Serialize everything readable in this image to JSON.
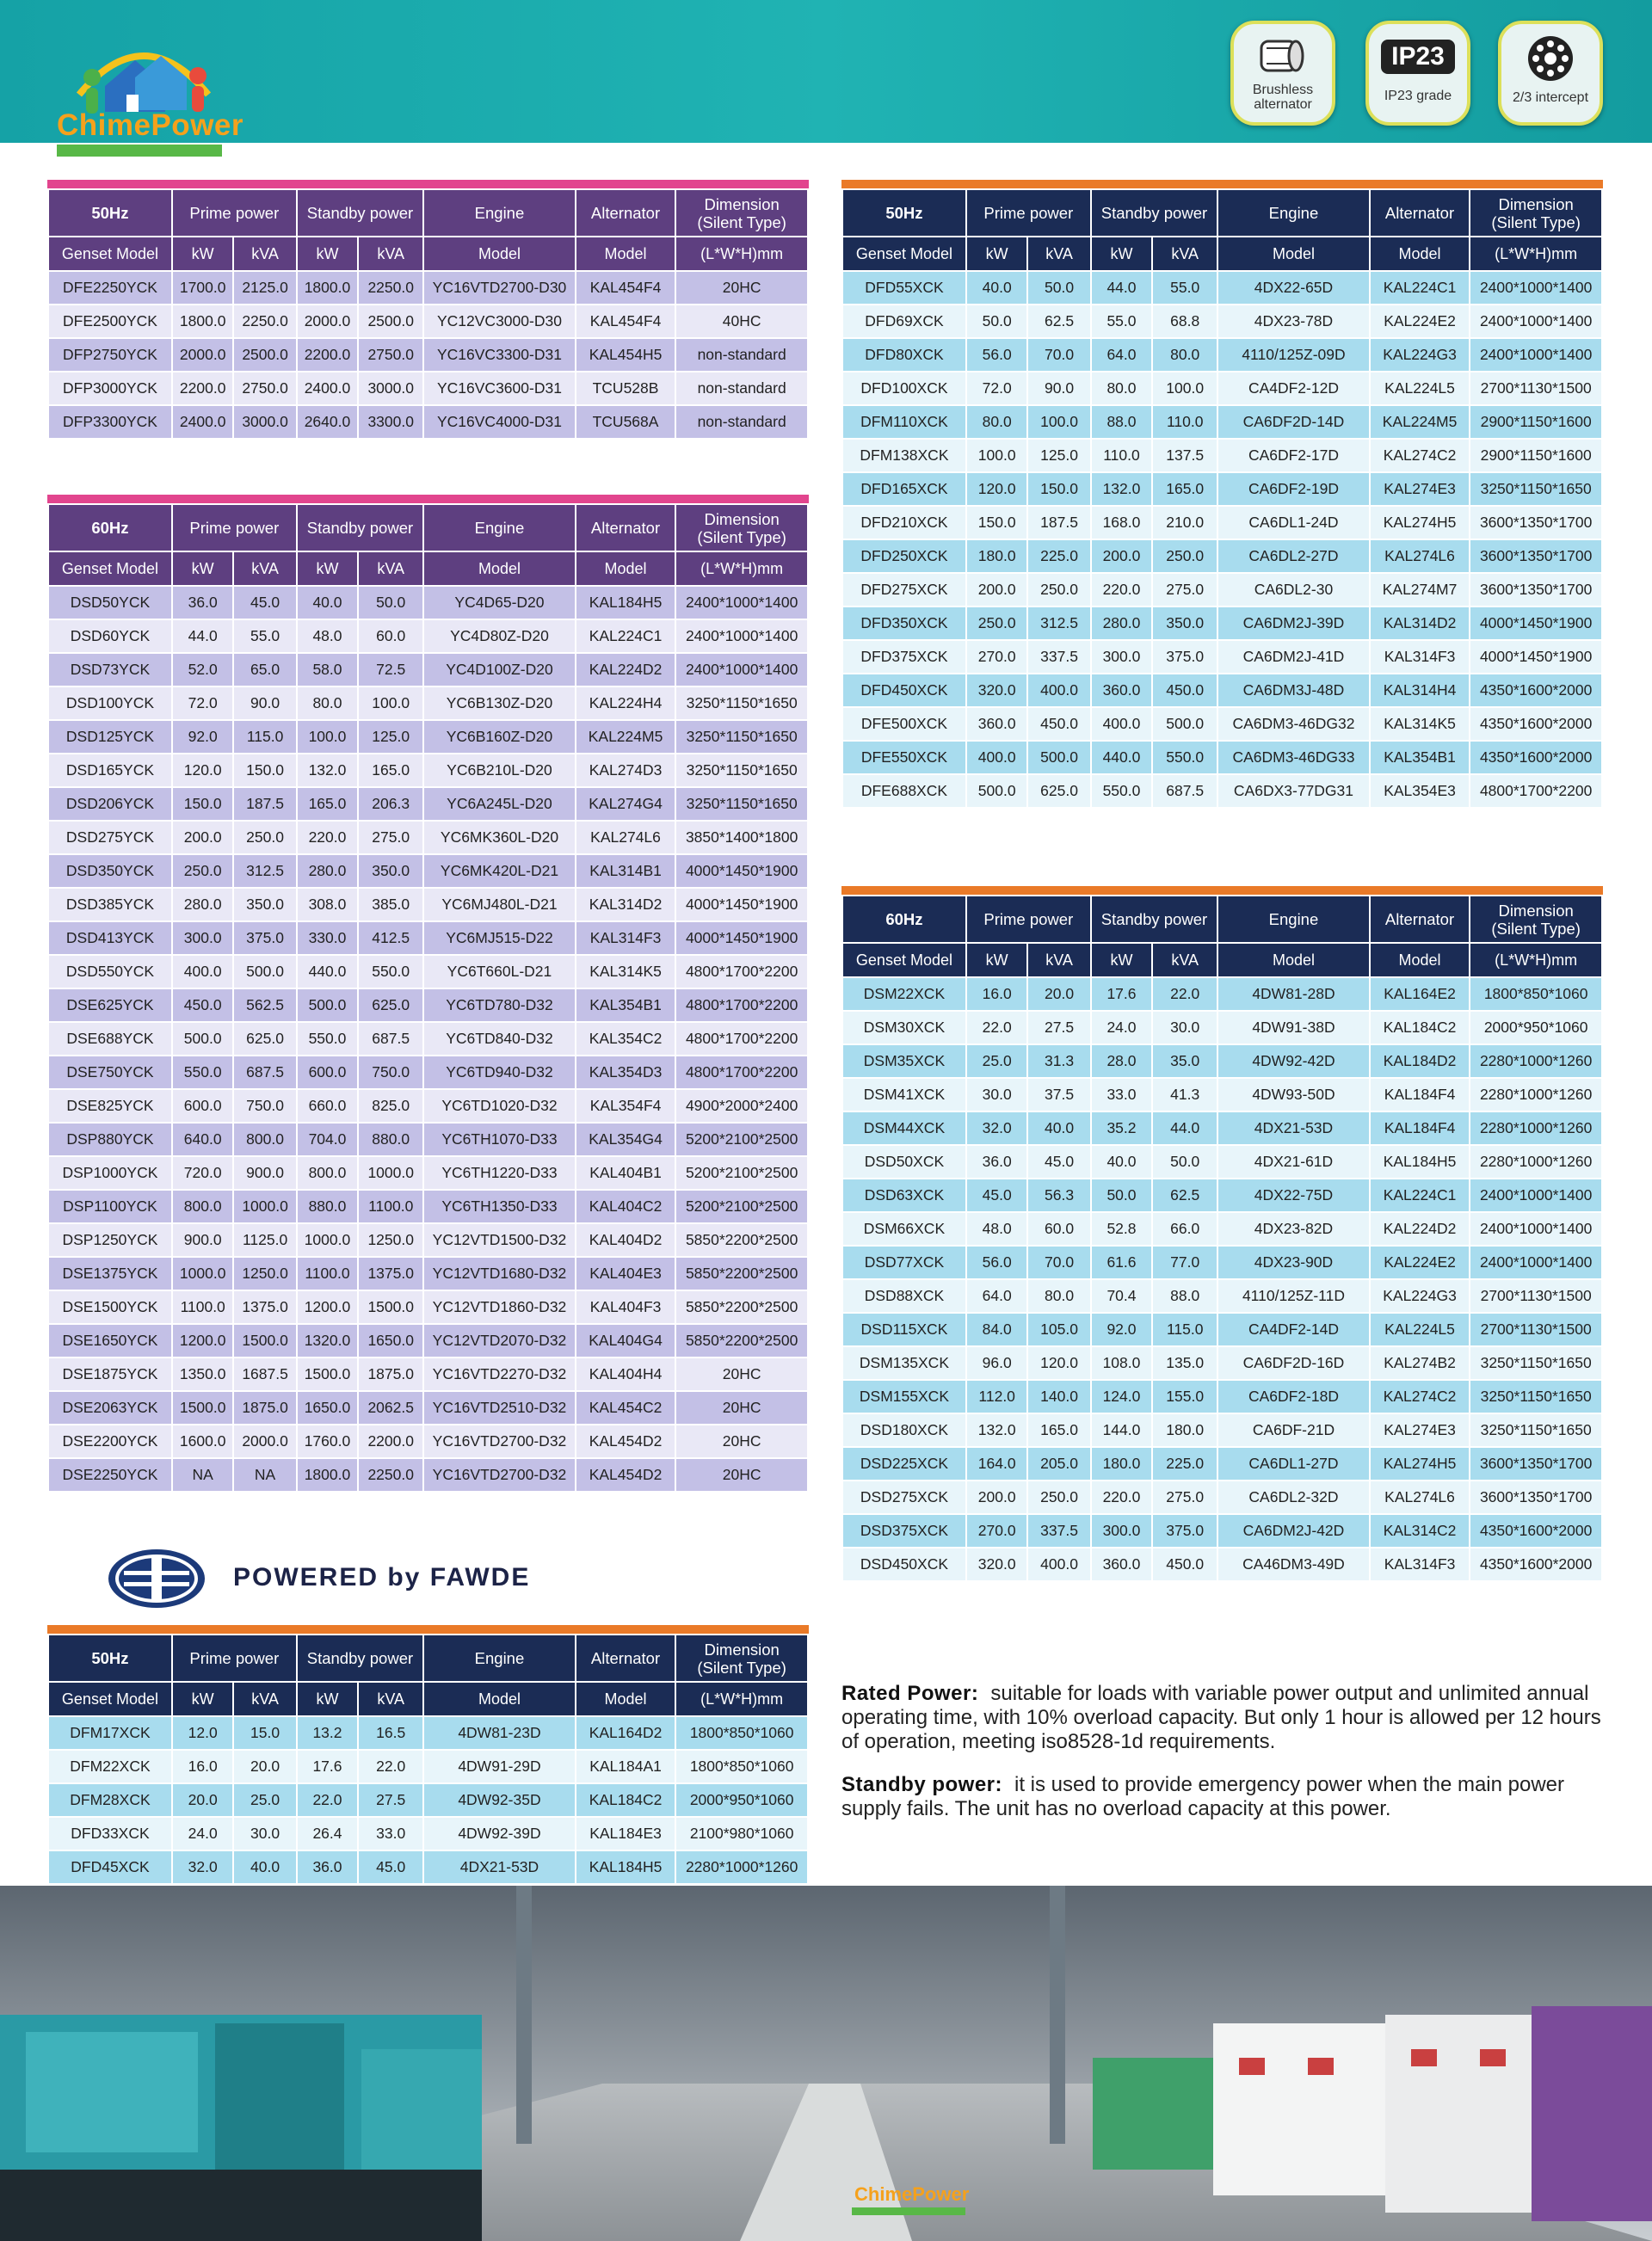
{
  "header": {
    "brand": "ChimePower",
    "ip_mark": "IP23",
    "badges": [
      "Brushless alternator",
      "IP23 grade",
      "2/3 intercept"
    ]
  },
  "table_header": {
    "groups": [
      "Prime power",
      "Standby power",
      "Engine",
      "Alternator"
    ],
    "dimension": [
      "Dimension",
      "(Silent Type)"
    ],
    "subheads": [
      "Genset Model",
      "kW",
      "kVA",
      "kW",
      "kVA",
      "Model",
      "Model",
      "(L*W*H)mm"
    ]
  },
  "tables": [
    {
      "frequency": "50Hz",
      "rows": [
        [
          "DFE2250YCK",
          "1700.0",
          "2125.0",
          "1800.0",
          "2250.0",
          "YC16VTD2700-D30",
          "KAL454F4",
          "20HC"
        ],
        [
          "DFE2500YCK",
          "1800.0",
          "2250.0",
          "2000.0",
          "2500.0",
          "YC12VC3000-D30",
          "KAL454F4",
          "40HC"
        ],
        [
          "DFP2750YCK",
          "2000.0",
          "2500.0",
          "2200.0",
          "2750.0",
          "YC16VC3300-D31",
          "KAL454H5",
          "non-standard"
        ],
        [
          "DFP3000YCK",
          "2200.0",
          "2750.0",
          "2400.0",
          "3000.0",
          "YC16VC3600-D31",
          "TCU528B",
          "non-standard"
        ],
        [
          "DFP3300YCK",
          "2400.0",
          "3000.0",
          "2640.0",
          "3300.0",
          "YC16VC4000-D31",
          "TCU568A",
          "non-standard"
        ]
      ]
    },
    {
      "frequency": "60Hz",
      "rows": [
        [
          "DSD50YCK",
          "36.0",
          "45.0",
          "40.0",
          "50.0",
          "YC4D65-D20",
          "KAL184H5",
          "2400*1000*1400"
        ],
        [
          "DSD60YCK",
          "44.0",
          "55.0",
          "48.0",
          "60.0",
          "YC4D80Z-D20",
          "KAL224C1",
          "2400*1000*1400"
        ],
        [
          "DSD73YCK",
          "52.0",
          "65.0",
          "58.0",
          "72.5",
          "YC4D100Z-D20",
          "KAL224D2",
          "2400*1000*1400"
        ],
        [
          "DSD100YCK",
          "72.0",
          "90.0",
          "80.0",
          "100.0",
          "YC6B130Z-D20",
          "KAL224H4",
          "3250*1150*1650"
        ],
        [
          "DSD125YCK",
          "92.0",
          "115.0",
          "100.0",
          "125.0",
          "YC6B160Z-D20",
          "KAL224M5",
          "3250*1150*1650"
        ],
        [
          "DSD165YCK",
          "120.0",
          "150.0",
          "132.0",
          "165.0",
          "YC6B210L-D20",
          "KAL274D3",
          "3250*1150*1650"
        ],
        [
          "DSD206YCK",
          "150.0",
          "187.5",
          "165.0",
          "206.3",
          "YC6A245L-D20",
          "KAL274G4",
          "3250*1150*1650"
        ],
        [
          "DSD275YCK",
          "200.0",
          "250.0",
          "220.0",
          "275.0",
          "YC6MK360L-D20",
          "KAL274L6",
          "3850*1400*1800"
        ],
        [
          "DSD350YCK",
          "250.0",
          "312.5",
          "280.0",
          "350.0",
          "YC6MK420L-D21",
          "KAL314B1",
          "4000*1450*1900"
        ],
        [
          "DSD385YCK",
          "280.0",
          "350.0",
          "308.0",
          "385.0",
          "YC6MJ480L-D21",
          "KAL314D2",
          "4000*1450*1900"
        ],
        [
          "DSD413YCK",
          "300.0",
          "375.0",
          "330.0",
          "412.5",
          "YC6MJ515-D22",
          "KAL314F3",
          "4000*1450*1900"
        ],
        [
          "DSD550YCK",
          "400.0",
          "500.0",
          "440.0",
          "550.0",
          "YC6T660L-D21",
          "KAL314K5",
          "4800*1700*2200"
        ],
        [
          "DSE625YCK",
          "450.0",
          "562.5",
          "500.0",
          "625.0",
          "YC6TD780-D32",
          "KAL354B1",
          "4800*1700*2200"
        ],
        [
          "DSE688YCK",
          "500.0",
          "625.0",
          "550.0",
          "687.5",
          "YC6TD840-D32",
          "KAL354C2",
          "4800*1700*2200"
        ],
        [
          "DSE750YCK",
          "550.0",
          "687.5",
          "600.0",
          "750.0",
          "YC6TD940-D32",
          "KAL354D3",
          "4800*1700*2200"
        ],
        [
          "DSE825YCK",
          "600.0",
          "750.0",
          "660.0",
          "825.0",
          "YC6TD1020-D32",
          "KAL354F4",
          "4900*2000*2400"
        ],
        [
          "DSP880YCK",
          "640.0",
          "800.0",
          "704.0",
          "880.0",
          "YC6TH1070-D33",
          "KAL354G4",
          "5200*2100*2500"
        ],
        [
          "DSP1000YCK",
          "720.0",
          "900.0",
          "800.0",
          "1000.0",
          "YC6TH1220-D33",
          "KAL404B1",
          "5200*2100*2500"
        ],
        [
          "DSP1100YCK",
          "800.0",
          "1000.0",
          "880.0",
          "1100.0",
          "YC6TH1350-D33",
          "KAL404C2",
          "5200*2100*2500"
        ],
        [
          "DSP1250YCK",
          "900.0",
          "1125.0",
          "1000.0",
          "1250.0",
          "YC12VTD1500-D32",
          "KAL404D2",
          "5850*2200*2500"
        ],
        [
          "DSE1375YCK",
          "1000.0",
          "1250.0",
          "1100.0",
          "1375.0",
          "YC12VTD1680-D32",
          "KAL404E3",
          "5850*2200*2500"
        ],
        [
          "DSE1500YCK",
          "1100.0",
          "1375.0",
          "1200.0",
          "1500.0",
          "YC12VTD1860-D32",
          "KAL404F3",
          "5850*2200*2500"
        ],
        [
          "DSE1650YCK",
          "1200.0",
          "1500.0",
          "1320.0",
          "1650.0",
          "YC12VTD2070-D32",
          "KAL404G4",
          "5850*2200*2500"
        ],
        [
          "DSE1875YCK",
          "1350.0",
          "1687.5",
          "1500.0",
          "1875.0",
          "YC16VTD2270-D32",
          "KAL404H4",
          "20HC"
        ],
        [
          "DSE2063YCK",
          "1500.0",
          "1875.0",
          "1650.0",
          "2062.5",
          "YC16VTD2510-D32",
          "KAL454C2",
          "20HC"
        ],
        [
          "DSE2200YCK",
          "1600.0",
          "2000.0",
          "1760.0",
          "2200.0",
          "YC16VTD2700-D32",
          "KAL454D2",
          "20HC"
        ],
        [
          "DSE2250YCK",
          "NA",
          "NA",
          "1800.0",
          "2250.0",
          "YC16VTD2700-D32",
          "KAL454D2",
          "20HC"
        ]
      ]
    },
    {
      "frequency": "50Hz",
      "rows": [
        [
          "DFM17XCK",
          "12.0",
          "15.0",
          "13.2",
          "16.5",
          "4DW81-23D",
          "KAL164D2",
          "1800*850*1060"
        ],
        [
          "DFM22XCK",
          "16.0",
          "20.0",
          "17.6",
          "22.0",
          "4DW91-29D",
          "KAL184A1",
          "1800*850*1060"
        ],
        [
          "DFM28XCK",
          "20.0",
          "25.0",
          "22.0",
          "27.5",
          "4DW92-35D",
          "KAL184C2",
          "2000*950*1060"
        ],
        [
          "DFD33XCK",
          "24.0",
          "30.0",
          "26.4",
          "33.0",
          "4DW92-39D",
          "KAL184E3",
          "2100*980*1060"
        ],
        [
          "DFD45XCK",
          "32.0",
          "40.0",
          "36.0",
          "45.0",
          "4DX21-53D",
          "KAL184H5",
          "2280*1000*1260"
        ]
      ]
    },
    {
      "frequency": "50Hz",
      "rows": [
        [
          "DFD55XCK",
          "40.0",
          "50.0",
          "44.0",
          "55.0",
          "4DX22-65D",
          "KAL224C1",
          "2400*1000*1400"
        ],
        [
          "DFD69XCK",
          "50.0",
          "62.5",
          "55.0",
          "68.8",
          "4DX23-78D",
          "KAL224E2",
          "2400*1000*1400"
        ],
        [
          "DFD80XCK",
          "56.0",
          "70.0",
          "64.0",
          "80.0",
          "4110/125Z-09D",
          "KAL224G3",
          "2400*1000*1400"
        ],
        [
          "DFD100XCK",
          "72.0",
          "90.0",
          "80.0",
          "100.0",
          "CA4DF2-12D",
          "KAL224L5",
          "2700*1130*1500"
        ],
        [
          "DFM110XCK",
          "80.0",
          "100.0",
          "88.0",
          "110.0",
          "CA6DF2D-14D",
          "KAL224M5",
          "2900*1150*1600"
        ],
        [
          "DFM138XCK",
          "100.0",
          "125.0",
          "110.0",
          "137.5",
          "CA6DF2-17D",
          "KAL274C2",
          "2900*1150*1600"
        ],
        [
          "DFD165XCK",
          "120.0",
          "150.0",
          "132.0",
          "165.0",
          "CA6DF2-19D",
          "KAL274E3",
          "3250*1150*1650"
        ],
        [
          "DFD210XCK",
          "150.0",
          "187.5",
          "168.0",
          "210.0",
          "CA6DL1-24D",
          "KAL274H5",
          "3600*1350*1700"
        ],
        [
          "DFD250XCK",
          "180.0",
          "225.0",
          "200.0",
          "250.0",
          "CA6DL2-27D",
          "KAL274L6",
          "3600*1350*1700"
        ],
        [
          "DFD275XCK",
          "200.0",
          "250.0",
          "220.0",
          "275.0",
          "CA6DL2-30",
          "KAL274M7",
          "3600*1350*1700"
        ],
        [
          "DFD350XCK",
          "250.0",
          "312.5",
          "280.0",
          "350.0",
          "CA6DM2J-39D",
          "KAL314D2",
          "4000*1450*1900"
        ],
        [
          "DFD375XCK",
          "270.0",
          "337.5",
          "300.0",
          "375.0",
          "CA6DM2J-41D",
          "KAL314F3",
          "4000*1450*1900"
        ],
        [
          "DFD450XCK",
          "320.0",
          "400.0",
          "360.0",
          "450.0",
          "CA6DM3J-48D",
          "KAL314H4",
          "4350*1600*2000"
        ],
        [
          "DFE500XCK",
          "360.0",
          "450.0",
          "400.0",
          "500.0",
          "CA6DM3-46DG32",
          "KAL314K5",
          "4350*1600*2000"
        ],
        [
          "DFE550XCK",
          "400.0",
          "500.0",
          "440.0",
          "550.0",
          "CA6DM3-46DG33",
          "KAL354B1",
          "4350*1600*2000"
        ],
        [
          "DFE688XCK",
          "500.0",
          "625.0",
          "550.0",
          "687.5",
          "CA6DX3-77DG31",
          "KAL354E3",
          "4800*1700*2200"
        ]
      ]
    },
    {
      "frequency": "60Hz",
      "rows": [
        [
          "DSM22XCK",
          "16.0",
          "20.0",
          "17.6",
          "22.0",
          "4DW81-28D",
          "KAL164E2",
          "1800*850*1060"
        ],
        [
          "DSM30XCK",
          "22.0",
          "27.5",
          "24.0",
          "30.0",
          "4DW91-38D",
          "KAL184C2",
          "2000*950*1060"
        ],
        [
          "DSM35XCK",
          "25.0",
          "31.3",
          "28.0",
          "35.0",
          "4DW92-42D",
          "KAL184D2",
          "2280*1000*1260"
        ],
        [
          "DSM41XCK",
          "30.0",
          "37.5",
          "33.0",
          "41.3",
          "4DW93-50D",
          "KAL184F4",
          "2280*1000*1260"
        ],
        [
          "DSM44XCK",
          "32.0",
          "40.0",
          "35.2",
          "44.0",
          "4DX21-53D",
          "KAL184F4",
          "2280*1000*1260"
        ],
        [
          "DSD50XCK",
          "36.0",
          "45.0",
          "40.0",
          "50.0",
          "4DX21-61D",
          "KAL184H5",
          "2280*1000*1260"
        ],
        [
          "DSD63XCK",
          "45.0",
          "56.3",
          "50.0",
          "62.5",
          "4DX22-75D",
          "KAL224C1",
          "2400*1000*1400"
        ],
        [
          "DSM66XCK",
          "48.0",
          "60.0",
          "52.8",
          "66.0",
          "4DX23-82D",
          "KAL224D2",
          "2400*1000*1400"
        ],
        [
          "DSD77XCK",
          "56.0",
          "70.0",
          "61.6",
          "77.0",
          "4DX23-90D",
          "KAL224E2",
          "2400*1000*1400"
        ],
        [
          "DSD88XCK",
          "64.0",
          "80.0",
          "70.4",
          "88.0",
          "4110/125Z-11D",
          "KAL224G3",
          "2700*1130*1500"
        ],
        [
          "DSD115XCK",
          "84.0",
          "105.0",
          "92.0",
          "115.0",
          "CA4DF2-14D",
          "KAL224L5",
          "2700*1130*1500"
        ],
        [
          "DSM135XCK",
          "96.0",
          "120.0",
          "108.0",
          "135.0",
          "CA6DF2D-16D",
          "KAL274B2",
          "3250*1150*1650"
        ],
        [
          "DSM155XCK",
          "112.0",
          "140.0",
          "124.0",
          "155.0",
          "CA6DF2-18D",
          "KAL274C2",
          "3250*1150*1650"
        ],
        [
          "DSD180XCK",
          "132.0",
          "165.0",
          "144.0",
          "180.0",
          "CA6DF-21D",
          "KAL274E3",
          "3250*1150*1650"
        ],
        [
          "DSD225XCK",
          "164.0",
          "205.0",
          "180.0",
          "225.0",
          "CA6DL1-27D",
          "KAL274H5",
          "3600*1350*1700"
        ],
        [
          "DSD275XCK",
          "200.0",
          "250.0",
          "220.0",
          "275.0",
          "CA6DL2-32D",
          "KAL274L6",
          "3600*1350*1700"
        ],
        [
          "DSD375XCK",
          "270.0",
          "337.5",
          "300.0",
          "375.0",
          "CA6DM2J-42D",
          "KAL314C2",
          "4350*1600*2000"
        ],
        [
          "DSD450XCK",
          "320.0",
          "400.0",
          "360.0",
          "450.0",
          "CA46DM3-49D",
          "KAL314F3",
          "4350*1600*2000"
        ]
      ]
    }
  ],
  "fawde": {
    "text": "POWERED by FAWDE"
  },
  "notes": [
    {
      "term": "Rated Power:",
      "text": "suitable for loads with variable power output and unlimited annual operating time, with 10% overload capacity. But only 1 hour is allowed per 12 hours of operation, meeting iso8528-1d requirements."
    },
    {
      "term": "Standby power:",
      "text": "it is used to provide emergency power when the main power supply fails. The unit has no overload capacity at this power."
    }
  ],
  "footer": {
    "brand": "ChimePower"
  }
}
